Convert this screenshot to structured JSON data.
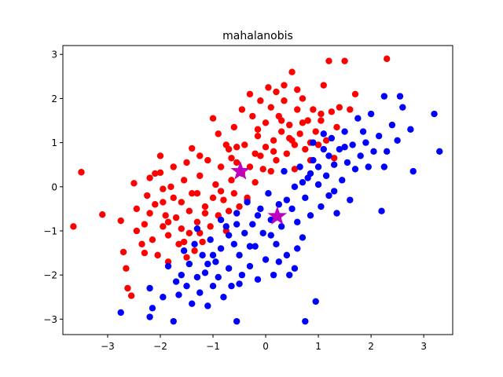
{
  "chart_data": {
    "type": "scatter",
    "title": "mahalanobis",
    "xlabel": "",
    "ylabel": "",
    "xlim": [
      -3.85,
      3.55
    ],
    "ylim": [
      -3.35,
      3.2
    ],
    "xticks": [
      -3,
      -2,
      -1,
      0,
      1,
      2,
      3
    ],
    "yticks": [
      -3,
      -2,
      -1,
      0,
      1,
      2,
      3
    ],
    "xtick_labels": [
      "−3",
      "−2",
      "−1",
      "0",
      "1",
      "2",
      "3"
    ],
    "ytick_labels": [
      "−3",
      "−2",
      "−1",
      "0",
      "1",
      "2",
      "3"
    ],
    "grid": false,
    "legend": "none",
    "series": [
      {
        "color": "#ff0000",
        "marker": "circle",
        "points": [
          [
            -3.5,
            0.33
          ],
          [
            -3.65,
            -0.9
          ],
          [
            -3.1,
            -0.63
          ],
          [
            -2.75,
            -0.77
          ],
          [
            -2.7,
            -1.48
          ],
          [
            -2.65,
            -1.85
          ],
          [
            -2.62,
            -2.3
          ],
          [
            -2.55,
            -2.47
          ],
          [
            -2.5,
            0.08
          ],
          [
            -2.45,
            -1.0
          ],
          [
            -2.35,
            -1.3
          ],
          [
            -2.3,
            -1.5
          ],
          [
            -2.3,
            -0.85
          ],
          [
            -2.25,
            -0.2
          ],
          [
            -2.2,
            -0.6
          ],
          [
            -2.15,
            -1.2
          ],
          [
            -2.1,
            0.3
          ],
          [
            -2.05,
            -1.55
          ],
          [
            -2.0,
            0.7
          ],
          [
            -2.0,
            0.32
          ],
          [
            -1.95,
            -0.9
          ],
          [
            -1.95,
            -0.35
          ],
          [
            -1.9,
            -0.65
          ],
          [
            -1.85,
            -1.1
          ],
          [
            -1.85,
            -1.7
          ],
          [
            -1.8,
            0.0
          ],
          [
            -1.75,
            0.45
          ],
          [
            -1.75,
            -0.25
          ],
          [
            -1.7,
            -0.7
          ],
          [
            -1.65,
            -1.3
          ],
          [
            -1.6,
            -0.95
          ],
          [
            -1.55,
            0.15
          ],
          [
            -1.5,
            0.55
          ],
          [
            -1.5,
            -1.6
          ],
          [
            -1.45,
            -1.05
          ],
          [
            -1.45,
            -0.55
          ],
          [
            -1.4,
            0.87
          ],
          [
            -1.4,
            -0.15
          ],
          [
            -1.35,
            -1.45
          ],
          [
            -1.3,
            -0.8
          ],
          [
            -1.25,
            0.25
          ],
          [
            -1.2,
            -1.25
          ],
          [
            -1.15,
            -0.45
          ],
          [
            -1.1,
            0.6
          ],
          [
            -1.05,
            -0.9
          ],
          [
            -1.0,
            -0.25
          ],
          [
            -0.95,
            0.05
          ],
          [
            -0.9,
            -0.65
          ],
          [
            -0.9,
            1.2
          ],
          [
            -0.85,
            0.45
          ],
          [
            -0.8,
            -0.3
          ],
          [
            -0.75,
            -1.0
          ],
          [
            -0.7,
            0.85
          ],
          [
            -0.7,
            -0.55
          ],
          [
            -0.65,
            0.15
          ],
          [
            -0.6,
            1.35
          ],
          [
            -0.6,
            -0.15
          ],
          [
            -0.55,
            0.55
          ],
          [
            -0.5,
            -0.45
          ],
          [
            -0.45,
            1.75
          ],
          [
            -0.45,
            0.3
          ],
          [
            -0.4,
            0.95
          ],
          [
            -0.35,
            -0.25
          ],
          [
            -0.3,
            0.45
          ],
          [
            -0.25,
            1.6
          ],
          [
            -0.2,
            0.1
          ],
          [
            -0.15,
            1.15
          ],
          [
            -0.1,
            0.7
          ],
          [
            -0.05,
            0.4
          ],
          [
            0.0,
            1.45
          ],
          [
            0.0,
            0.9
          ],
          [
            0.05,
            2.25
          ],
          [
            0.1,
            1.8
          ],
          [
            0.1,
            0.35
          ],
          [
            0.15,
            1.05
          ],
          [
            0.2,
            2.15
          ],
          [
            0.2,
            0.6
          ],
          [
            0.25,
            1.6
          ],
          [
            0.3,
            1.25
          ],
          [
            0.35,
            1.95
          ],
          [
            0.4,
            0.75
          ],
          [
            0.45,
            1.4
          ],
          [
            0.5,
            2.6
          ],
          [
            0.5,
            1.05
          ],
          [
            0.55,
            0.4
          ],
          [
            0.6,
            1.75
          ],
          [
            0.65,
            1.2
          ],
          [
            0.7,
            2.0
          ],
          [
            0.75,
            0.85
          ],
          [
            0.8,
            1.5
          ],
          [
            0.85,
            1.0
          ],
          [
            0.9,
            1.75
          ],
          [
            0.95,
            1.25
          ],
          [
            1.0,
            0.95
          ],
          [
            1.05,
            1.5
          ],
          [
            1.1,
            2.3
          ],
          [
            1.15,
            1.05
          ],
          [
            1.2,
            2.85
          ],
          [
            1.25,
            1.7
          ],
          [
            1.3,
            0.65
          ],
          [
            1.35,
            1.35
          ],
          [
            1.4,
            1.8
          ],
          [
            1.5,
            2.85
          ],
          [
            1.7,
            2.1
          ],
          [
            2.3,
            2.9
          ],
          [
            -0.3,
            2.1
          ],
          [
            -0.1,
            1.95
          ],
          [
            0.35,
            2.3
          ],
          [
            0.6,
            2.2
          ],
          [
            -1.0,
            1.55
          ],
          [
            -0.75,
            0.95
          ],
          [
            -1.25,
            0.7
          ],
          [
            -0.55,
            0.9
          ],
          [
            -0.2,
            0.75
          ],
          [
            0.45,
            1.1
          ],
          [
            0.7,
            1.45
          ],
          [
            1.05,
            1.65
          ],
          [
            -2.45,
            -0.5
          ],
          [
            -2.1,
            -0.4
          ],
          [
            -1.6,
            -0.35
          ],
          [
            -1.85,
            -0.8
          ],
          [
            -1.15,
            -0.6
          ],
          [
            -0.85,
            -0.1
          ],
          [
            -0.35,
            -0.3
          ],
          [
            -1.25,
            -1.05
          ],
          [
            -1.55,
            -1.25
          ],
          [
            0.15,
            0.8
          ],
          [
            0.55,
            0.95
          ],
          [
            0.85,
            0.6
          ],
          [
            1.6,
            1.75
          ],
          [
            -0.15,
            1.3
          ],
          [
            0.3,
            1.5
          ],
          [
            -0.65,
            0.65
          ],
          [
            -1.3,
            -0.15
          ],
          [
            -1.95,
            -0.05
          ],
          [
            -2.2,
            0.2
          ]
        ]
      },
      {
        "color": "#0000ff",
        "marker": "circle",
        "points": [
          [
            -2.75,
            -2.85
          ],
          [
            -2.2,
            -2.95
          ],
          [
            -2.15,
            -2.75
          ],
          [
            -2.2,
            -2.3
          ],
          [
            -1.95,
            -2.5
          ],
          [
            -1.85,
            -1.8
          ],
          [
            -1.75,
            -3.05
          ],
          [
            -1.7,
            -2.15
          ],
          [
            -1.65,
            -2.45
          ],
          [
            -1.6,
            -2.0
          ],
          [
            -1.5,
            -2.25
          ],
          [
            -1.45,
            -1.75
          ],
          [
            -1.4,
            -2.65
          ],
          [
            -1.35,
            -1.3
          ],
          [
            -1.3,
            -2.05
          ],
          [
            -1.25,
            -2.4
          ],
          [
            -1.2,
            -1.55
          ],
          [
            -1.15,
            -1.95
          ],
          [
            -1.1,
            -2.7
          ],
          [
            -1.05,
            -1.2
          ],
          [
            -1.0,
            -2.25
          ],
          [
            -0.95,
            -1.7
          ],
          [
            -0.9,
            -2.05
          ],
          [
            -0.85,
            -1.4
          ],
          [
            -0.8,
            -2.5
          ],
          [
            -0.75,
            -0.9
          ],
          [
            -0.7,
            -1.85
          ],
          [
            -0.65,
            -2.25
          ],
          [
            -0.6,
            -1.3
          ],
          [
            -0.55,
            -3.05
          ],
          [
            -0.55,
            -0.6
          ],
          [
            -0.5,
            -1.55
          ],
          [
            -0.45,
            -2.0
          ],
          [
            -0.4,
            -1.05
          ],
          [
            -0.35,
            -0.35
          ],
          [
            -0.3,
            -1.8
          ],
          [
            -0.25,
            -0.85
          ],
          [
            -0.2,
            -1.35
          ],
          [
            -0.15,
            -2.1
          ],
          [
            -0.1,
            -0.5
          ],
          [
            -0.05,
            -1.05
          ],
          [
            0.0,
            -1.65
          ],
          [
            0.05,
            -0.15
          ],
          [
            0.1,
            -0.75
          ],
          [
            0.15,
            -2.0
          ],
          [
            0.2,
            -1.3
          ],
          [
            0.25,
            -0.4
          ],
          [
            0.3,
            -0.9
          ],
          [
            0.35,
            0.35
          ],
          [
            0.4,
            -1.55
          ],
          [
            0.45,
            -2.0
          ],
          [
            0.5,
            -0.5
          ],
          [
            0.55,
            0.0
          ],
          [
            0.55,
            -1.85
          ],
          [
            0.6,
            -0.8
          ],
          [
            0.65,
            0.45
          ],
          [
            0.7,
            -1.15
          ],
          [
            0.75,
            -0.25
          ],
          [
            0.75,
            -3.05
          ],
          [
            0.8,
            0.2
          ],
          [
            0.85,
            -0.65
          ],
          [
            0.9,
            0.6
          ],
          [
            0.95,
            -2.6
          ],
          [
            1.0,
            0.05
          ],
          [
            1.05,
            -0.45
          ],
          [
            1.1,
            0.85
          ],
          [
            1.15,
            0.25
          ],
          [
            1.2,
            -0.2
          ],
          [
            1.25,
            1.1
          ],
          [
            1.3,
            0.5
          ],
          [
            1.35,
            -0.6
          ],
          [
            1.4,
            0.85
          ],
          [
            1.45,
            0.15
          ],
          [
            1.5,
            1.25
          ],
          [
            1.55,
            0.55
          ],
          [
            1.6,
            -0.3
          ],
          [
            1.65,
            0.95
          ],
          [
            1.7,
            0.4
          ],
          [
            1.75,
            1.55
          ],
          [
            1.8,
            0.7
          ],
          [
            1.9,
            1.0
          ],
          [
            1.95,
            0.45
          ],
          [
            2.0,
            1.65
          ],
          [
            2.05,
            0.8
          ],
          [
            2.15,
            1.15
          ],
          [
            2.2,
            -0.55
          ],
          [
            2.25,
            0.45
          ],
          [
            2.25,
            2.05
          ],
          [
            2.3,
            0.8
          ],
          [
            2.4,
            1.4
          ],
          [
            2.5,
            1.05
          ],
          [
            2.55,
            2.05
          ],
          [
            2.6,
            1.8
          ],
          [
            2.75,
            1.3
          ],
          [
            2.8,
            0.35
          ],
          [
            3.2,
            1.65
          ],
          [
            3.3,
            0.8
          ],
          [
            -1.3,
            -0.95
          ],
          [
            -1.0,
            -1.55
          ],
          [
            -0.7,
            -1.1
          ],
          [
            -0.3,
            -1.35
          ],
          [
            0.1,
            -1.1
          ],
          [
            0.4,
            -0.3
          ],
          [
            0.7,
            0.1
          ],
          [
            1.0,
            0.45
          ],
          [
            1.2,
            0.7
          ],
          [
            0.9,
            1.0
          ],
          [
            1.1,
            1.2
          ],
          [
            -0.55,
            -0.85
          ],
          [
            -0.85,
            -0.75
          ],
          [
            -1.1,
            -1.75
          ],
          [
            -0.5,
            -2.2
          ],
          [
            0.25,
            -1.7
          ],
          [
            0.6,
            -1.4
          ],
          [
            1.3,
            -0.1
          ],
          [
            1.5,
            0.9
          ],
          [
            1.85,
            1.25
          ],
          [
            -1.55,
            -1.45
          ],
          [
            -0.15,
            -0.65
          ],
          [
            0.85,
            0.3
          ]
        ]
      },
      {
        "color": "#bf00bf",
        "marker": "star",
        "points": [
          [
            -0.48,
            0.35
          ],
          [
            0.22,
            -0.67
          ]
        ]
      }
    ]
  }
}
